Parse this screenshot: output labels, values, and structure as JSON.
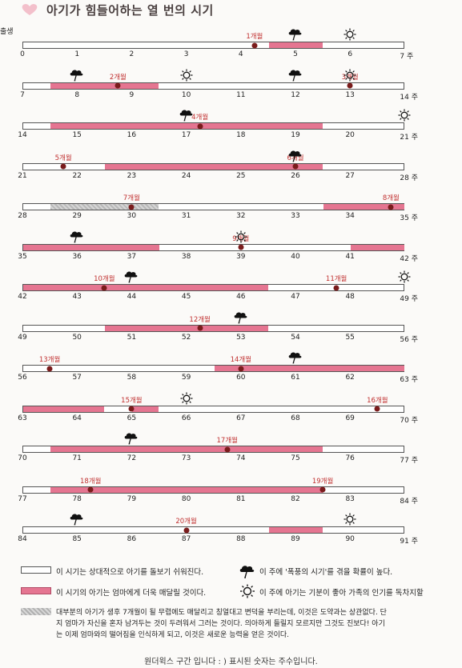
{
  "title": "아기가 힘들어하는 열 번의 시기",
  "birth_label": "출생",
  "week_unit": "주",
  "rows": [
    {
      "start": 0,
      "storms": [
        5
      ],
      "suns": [
        6
      ],
      "months": [
        {
          "label": "1개월",
          "week": 4.25
        }
      ],
      "pink": [
        [
          4.5,
          5.5
        ]
      ],
      "gray": []
    },
    {
      "start": 7,
      "storms": [
        8,
        12
      ],
      "suns": [
        10,
        13
      ],
      "months": [
        {
          "label": "2개월",
          "week": 8.75
        },
        {
          "label": "3개월",
          "week": 13
        }
      ],
      "pink": [
        [
          7.5,
          9.5
        ]
      ],
      "gray": []
    },
    {
      "start": 14,
      "storms": [
        17
      ],
      "suns": [
        21
      ],
      "months": [
        {
          "label": "4개월",
          "week": 17.25
        }
      ],
      "pink": [
        [
          14.5,
          19.5
        ]
      ],
      "gray": []
    },
    {
      "start": 21,
      "storms": [
        26
      ],
      "suns": [],
      "months": [
        {
          "label": "5개월",
          "week": 21.75
        },
        {
          "label": "6개월",
          "week": 26
        }
      ],
      "pink": [
        [
          22.5,
          26.5
        ]
      ],
      "gray": []
    },
    {
      "start": 28,
      "storms": [],
      "suns": [],
      "months": [
        {
          "label": "7개월",
          "week": 30
        },
        {
          "label": "8개월",
          "week": 34.75
        }
      ],
      "pink": [
        [
          33.5,
          35
        ]
      ],
      "gray": [
        [
          28.5,
          30.5
        ]
      ]
    },
    {
      "start": 35,
      "storms": [
        36
      ],
      "suns": [
        39
      ],
      "months": [
        {
          "label": "9개월",
          "week": 39
        }
      ],
      "pink": [
        [
          35,
          37.5
        ],
        [
          41,
          42
        ]
      ],
      "gray": []
    },
    {
      "start": 42,
      "storms": [
        44
      ],
      "suns": [
        49
      ],
      "months": [
        {
          "label": "10개월",
          "week": 43.5
        },
        {
          "label": "11개월",
          "week": 47.75
        }
      ],
      "pink": [
        [
          42,
          46.5
        ]
      ],
      "gray": []
    },
    {
      "start": 49,
      "storms": [
        53
      ],
      "suns": [],
      "months": [
        {
          "label": "12개월",
          "week": 52.25
        }
      ],
      "pink": [
        [
          50.5,
          53.5
        ]
      ],
      "gray": []
    },
    {
      "start": 56,
      "storms": [
        61
      ],
      "suns": [],
      "months": [
        {
          "label": "13개월",
          "week": 56.5
        },
        {
          "label": "14개월",
          "week": 60
        }
      ],
      "pink": [
        [
          59.5,
          63
        ]
      ],
      "gray": []
    },
    {
      "start": 63,
      "storms": [],
      "suns": [
        66
      ],
      "months": [
        {
          "label": "15개월",
          "week": 65
        },
        {
          "label": "16개월",
          "week": 69.5
        }
      ],
      "pink": [
        [
          63,
          64.5
        ],
        [
          65,
          65.5
        ]
      ],
      "gray": []
    },
    {
      "start": 70,
      "storms": [
        72
      ],
      "suns": [],
      "months": [
        {
          "label": "17개월",
          "week": 73.75
        }
      ],
      "pink": [
        [
          70.5,
          75.5
        ]
      ],
      "gray": []
    },
    {
      "start": 77,
      "storms": [],
      "suns": [],
      "months": [
        {
          "label": "18개월",
          "week": 78.25
        },
        {
          "label": "19개월",
          "week": 82.5
        }
      ],
      "pink": [
        [
          77.5,
          82.5
        ]
      ],
      "gray": []
    },
    {
      "start": 84,
      "storms": [
        85
      ],
      "suns": [
        90
      ],
      "months": [
        {
          "label": "20개월",
          "week": 87
        }
      ],
      "pink": [
        [
          88.5,
          89.5
        ]
      ],
      "gray": []
    }
  ],
  "legend": {
    "white_text": "이 시기는 상대적으로 아기를 돌보기 쉬워진다.",
    "pink_text": "이 시기의 아기는 엄마에게 더욱 매달릴 것이다.",
    "storm_text": "이 주에 '폭풍의 시기'를 겪을 확률이 높다.",
    "sun_text": "이 주에 아기는 기분이 좋아 가족의 인기를 독차지할",
    "gray_text_1": "대부분의 아기가 생후 7개월이 될 무렵에도 매달리고 칭얼대고 변덕을 부리는데, 이것은 도약과는 상관없다. 단",
    "gray_text_2": "지 엄마가 자신을 혼자 남겨두는 것이 두려워서 그러는 것이다. 의아하게 들릴지 모르지만 그것도 진보다! 아기",
    "gray_text_3": "는 이제 엄마와의 떨어짐을 인식하게 되고, 이것은 새로운 능력을 얻은 것이다.",
    "red_fragment": "단"
  },
  "footer": "원더윅스 구간 입니다 : ) 표시된 숫자는 주수입니다."
}
